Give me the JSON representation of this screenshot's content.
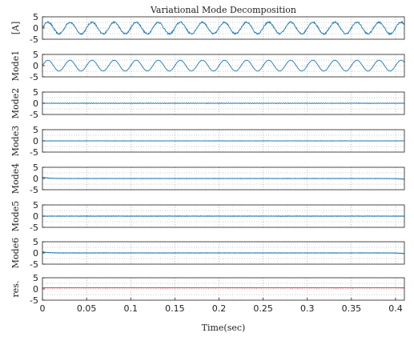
{
  "chart_data": {
    "type": "line",
    "title": "Variational Mode Decomposition",
    "xlabel": "Time(sec)",
    "xlim": [
      0,
      0.41
    ],
    "xticks": [
      "0",
      "0.05",
      "0.1",
      "0.15",
      "0.2",
      "0.25",
      "0.3",
      "0.35",
      "0.4"
    ],
    "grid": "dotted",
    "colors": {
      "signal": "#1f77b4",
      "residual": "#d62728",
      "grid": "#999999"
    },
    "panels": [
      {
        "ylabel": "[A]",
        "ylim": [
          -5,
          5
        ],
        "yticks": [
          "5",
          "0",
          "-5"
        ],
        "color": "#1f77b4",
        "wave": {
          "freq": 40,
          "amp": 2.6,
          "noise": 0.7,
          "offset": 0,
          "edge": 0
        }
      },
      {
        "ylabel": "Mode1",
        "ylim": [
          -5,
          5
        ],
        "yticks": [
          "5",
          "0",
          "-5"
        ],
        "color": "#1f77b4",
        "wave": {
          "freq": 40,
          "amp": 2.4,
          "noise": 0.05,
          "offset": 0,
          "edge": 0
        }
      },
      {
        "ylabel": "Mode2",
        "ylim": [
          -5,
          5
        ],
        "yticks": [
          "5",
          "0",
          "-5"
        ],
        "color": "#1f77b4",
        "wave": {
          "freq": 400,
          "amp": 0.15,
          "noise": 0.1,
          "offset": 0,
          "edge": 0
        }
      },
      {
        "ylabel": "Mode3",
        "ylim": [
          -5,
          5
        ],
        "yticks": [
          "5",
          "0",
          "-5"
        ],
        "color": "#1f77b4",
        "wave": {
          "freq": 600,
          "amp": 0.08,
          "noise": 0.05,
          "offset": 0,
          "edge": 0
        }
      },
      {
        "ylabel": "Mode4",
        "ylim": [
          -5,
          5
        ],
        "yticks": [
          "5",
          "0",
          "-5"
        ],
        "color": "#1f77b4",
        "wave": {
          "freq": 700,
          "amp": 0.1,
          "noise": 0.05,
          "offset": 0,
          "edge": 0.6
        }
      },
      {
        "ylabel": "Mode5",
        "ylim": [
          -5,
          5
        ],
        "yticks": [
          "5",
          "0",
          "-5"
        ],
        "color": "#1f77b4",
        "wave": {
          "freq": 800,
          "amp": 0.12,
          "noise": 0.08,
          "offset": 0,
          "edge": 0
        }
      },
      {
        "ylabel": "Mode6",
        "ylim": [
          -5,
          5
        ],
        "yticks": [
          "5",
          "0",
          "-5"
        ],
        "color": "#1f77b4",
        "wave": {
          "freq": 900,
          "amp": 0.1,
          "noise": 0.05,
          "offset": 0,
          "edge": 0.5
        }
      },
      {
        "ylabel": "res.",
        "ylim": [
          -5,
          5
        ],
        "yticks": [
          "5",
          "0",
          "-5"
        ],
        "color": "#d62728",
        "wave": {
          "freq": 0,
          "amp": 0,
          "noise": 0.02,
          "offset": 0.5,
          "edge": 0
        }
      }
    ]
  }
}
